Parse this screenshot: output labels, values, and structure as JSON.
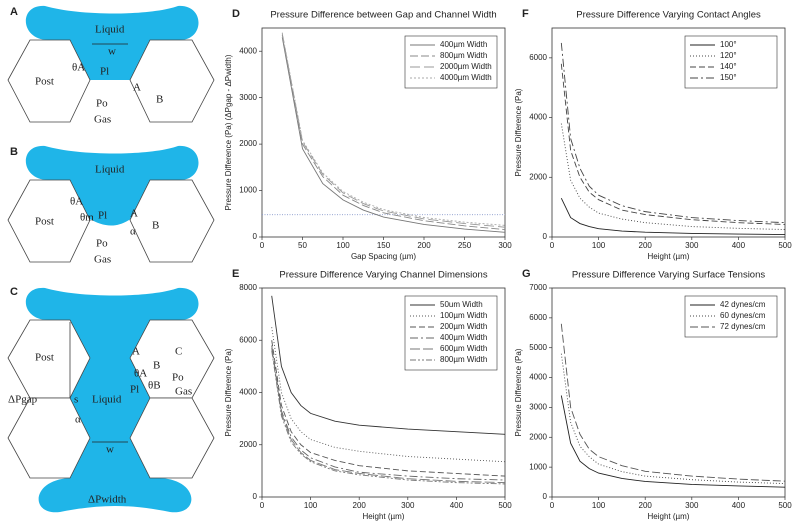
{
  "diagrams": [
    {
      "panel": "A",
      "labels": [
        "Liquid",
        "w",
        "θA",
        "Pl",
        "Post",
        "A",
        "B",
        "Po",
        "Gas"
      ]
    },
    {
      "panel": "B",
      "labels": [
        "Liquid",
        "θA",
        "θm",
        "Pl",
        "Post",
        "A",
        "α",
        "B",
        "Po",
        "Gas"
      ]
    },
    {
      "panel": "C",
      "labels": [
        "Post",
        "A",
        "B",
        "C",
        "θA",
        "θB",
        "Po",
        "Pl",
        "Gas",
        "Liquid",
        "ΔPgap",
        "s",
        "α",
        "w",
        "ΔPwidth"
      ]
    }
  ],
  "chart_data": [
    {
      "type": "line",
      "panel": "D",
      "title": "Pressure Difference between Gap and Channel Width",
      "x_label": "Gap Spacing (µm)",
      "y_label": "Pressure Difference (Pa) (ΔPgap - ΔPwidth)",
      "x": [
        25,
        50,
        75,
        100,
        125,
        150,
        200,
        250,
        300
      ],
      "series": [
        {
          "name": "400µm Width",
          "color": "#777777",
          "dash": "none",
          "values": [
            4300,
            1900,
            1150,
            800,
            580,
            430,
            270,
            170,
            100
          ]
        },
        {
          "name": "800µm Width",
          "color": "#888888",
          "dash": "8,3",
          "values": [
            4350,
            2000,
            1300,
            900,
            680,
            520,
            350,
            240,
            160
          ]
        },
        {
          "name": "2000µm Width",
          "color": "#999999",
          "dash": "10,4",
          "values": [
            4380,
            2050,
            1350,
            950,
            720,
            560,
            390,
            290,
            210
          ]
        },
        {
          "name": "4000µm Width",
          "color": "#aaaaaa",
          "dash": "2,2",
          "values": [
            4400,
            2080,
            1380,
            980,
            750,
            590,
            420,
            320,
            250
          ]
        }
      ],
      "hlines": [
        480
      ],
      "hline_color": "#8899cc",
      "xlim": [
        0,
        300
      ],
      "xticks": [
        0,
        50,
        100,
        150,
        200,
        250,
        300
      ],
      "ylim": [
        0,
        4500
      ],
      "yticks": [
        0,
        1000,
        2000,
        3000,
        4000
      ],
      "legend": "upper right"
    },
    {
      "type": "line",
      "panel": "E",
      "title": "Pressure Difference Varying Channel Dimensions",
      "x_label": "Height (µm)",
      "y_label": "Pressure Difference (Pa)",
      "x": [
        20,
        40,
        60,
        80,
        100,
        150,
        200,
        300,
        400,
        500
      ],
      "series": [
        {
          "name": "50um Width",
          "color": "#333333",
          "dash": "none",
          "values": [
            7700,
            5000,
            4000,
            3500,
            3200,
            2900,
            2750,
            2600,
            2500,
            2400
          ]
        },
        {
          "name": "100µm Width",
          "color": "#555555",
          "dash": "1,2",
          "values": [
            6500,
            4000,
            3000,
            2500,
            2200,
            1900,
            1750,
            1550,
            1450,
            1350
          ]
        },
        {
          "name": "200µm Width",
          "color": "#555555",
          "dash": "6,3",
          "values": [
            6000,
            3500,
            2500,
            2000,
            1700,
            1400,
            1200,
            1000,
            900,
            800
          ]
        },
        {
          "name": "400µm Width",
          "color": "#666666",
          "dash": "8,3,2,3",
          "values": [
            5800,
            3300,
            2300,
            1800,
            1500,
            1150,
            950,
            800,
            700,
            650
          ]
        },
        {
          "name": "600µm Width",
          "color": "#777777",
          "dash": "10,3",
          "values": [
            5700,
            3200,
            2200,
            1700,
            1400,
            1050,
            900,
            700,
            600,
            550
          ]
        },
        {
          "name": "800µm Width",
          "color": "#777777",
          "dash": "6,2,2,2,2,2",
          "values": [
            5600,
            3100,
            2100,
            1650,
            1350,
            1000,
            850,
            650,
            550,
            500
          ]
        }
      ],
      "xlim": [
        0,
        500
      ],
      "xticks": [
        0,
        100,
        200,
        300,
        400,
        500
      ],
      "ylim": [
        0,
        8000
      ],
      "yticks": [
        0,
        2000,
        4000,
        6000,
        8000
      ],
      "legend": "upper right"
    },
    {
      "type": "line",
      "panel": "F",
      "title": "Pressure Difference Varying Contact Angles",
      "x_label": "Height (µm)",
      "y_label": "Pressure Difference (Pa)",
      "x": [
        20,
        40,
        60,
        80,
        100,
        150,
        200,
        300,
        400,
        500
      ],
      "series": [
        {
          "name": "100°",
          "color": "#222222",
          "dash": "none",
          "values": [
            1300,
            650,
            450,
            350,
            280,
            200,
            160,
            120,
            100,
            80
          ]
        },
        {
          "name": "120°",
          "color": "#444444",
          "dash": "1,2",
          "values": [
            3800,
            1900,
            1300,
            1000,
            800,
            600,
            480,
            350,
            290,
            250
          ]
        },
        {
          "name": "140°",
          "color": "#444444",
          "dash": "6,3",
          "values": [
            5800,
            2900,
            2000,
            1500,
            1250,
            900,
            750,
            580,
            480,
            420
          ]
        },
        {
          "name": "150°",
          "color": "#444444",
          "dash": "8,3,2,3",
          "values": [
            6500,
            3300,
            2300,
            1700,
            1400,
            1050,
            850,
            650,
            550,
            480
          ]
        }
      ],
      "xlim": [
        0,
        500
      ],
      "xticks": [
        0,
        100,
        200,
        300,
        400,
        500
      ],
      "ylim": [
        0,
        7000
      ],
      "yticks": [
        0,
        2000,
        4000,
        6000
      ],
      "legend": "upper right"
    },
    {
      "type": "line",
      "panel": "G",
      "title": "Pressure Difference Varying Surface Tensions",
      "x_label": "Height (µm)",
      "y_label": "Pressure Difference (Pa)",
      "x": [
        20,
        40,
        60,
        80,
        100,
        150,
        200,
        300,
        400,
        500
      ],
      "series": [
        {
          "name": "42 dynes/cm",
          "color": "#222222",
          "dash": "none",
          "values": [
            3400,
            1800,
            1200,
            950,
            800,
            620,
            520,
            420,
            370,
            330
          ]
        },
        {
          "name": "60 dynes/cm",
          "color": "#444444",
          "dash": "1,2",
          "values": [
            4800,
            2500,
            1700,
            1350,
            1100,
            850,
            700,
            580,
            500,
            450
          ]
        },
        {
          "name": "72 dynes/cm",
          "color": "#555555",
          "dash": "8,3",
          "values": [
            5800,
            3000,
            2100,
            1600,
            1350,
            1050,
            860,
            700,
            600,
            530
          ]
        }
      ],
      "xlim": [
        0,
        500
      ],
      "xticks": [
        0,
        100,
        200,
        300,
        400,
        500
      ],
      "ylim": [
        0,
        7000
      ],
      "yticks": [
        0,
        1000,
        2000,
        3000,
        4000,
        5000,
        6000,
        7000
      ],
      "legend": "upper right"
    }
  ]
}
